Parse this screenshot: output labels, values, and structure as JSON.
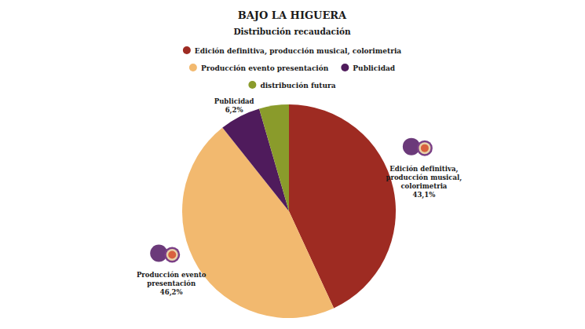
{
  "chart_data": {
    "type": "pie",
    "title": "BAJO LA HIGUERA",
    "subtitle": "Distribución recaudación",
    "categories": [
      "Edición definitiva, producción musical, colorimetria",
      "Producción evento presentación",
      "Publicidad",
      "distribución futura"
    ],
    "values": [
      43.1,
      46.2,
      6.2,
      4.5
    ],
    "value_labels": [
      "43,1%",
      "46,2%",
      "6,2%",
      null
    ],
    "colors": [
      "#9e2b22",
      "#f2b96f",
      "#4f1b5c",
      "#8a9b2b"
    ],
    "legend": "top",
    "data_labels": true
  }
}
